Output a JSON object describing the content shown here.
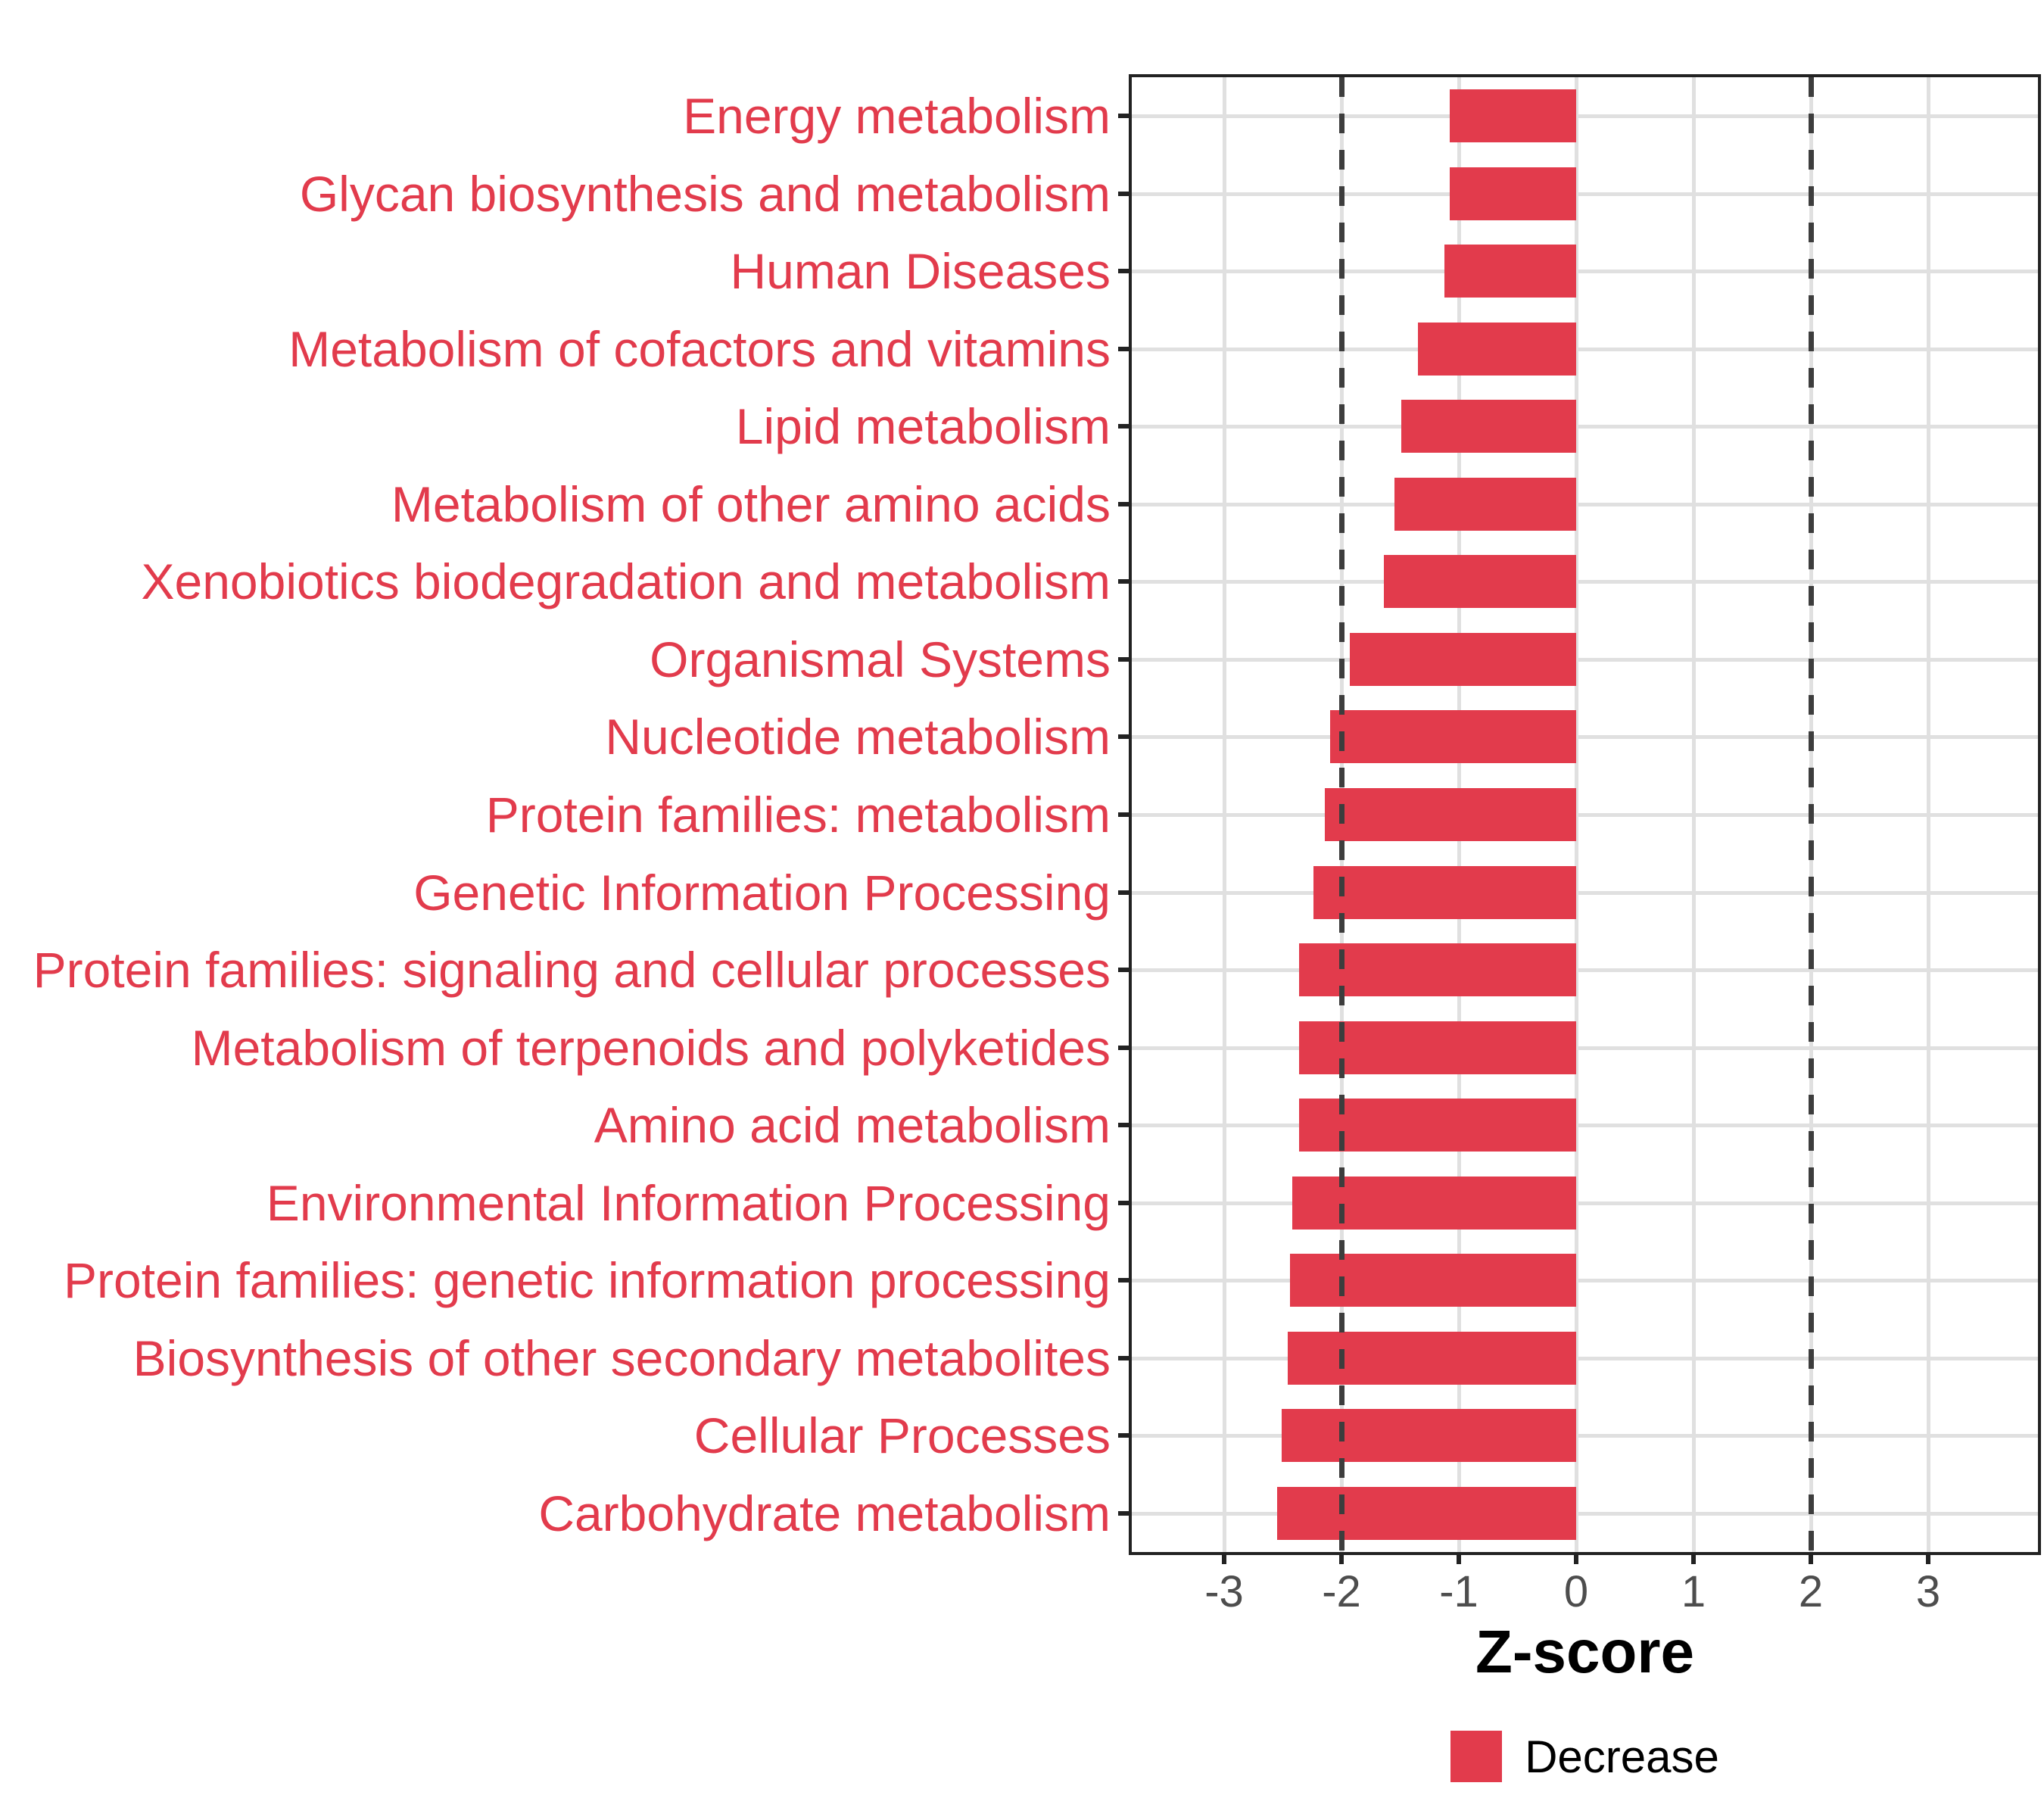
{
  "chart_data": {
    "type": "bar",
    "orientation": "horizontal",
    "title": "",
    "xlabel": "Z-score",
    "ylabel": "",
    "categories": [
      "Energy metabolism",
      "Glycan biosynthesis and metabolism",
      "Human Diseases",
      "Metabolism of cofactors and vitamins",
      "Lipid metabolism",
      "Metabolism of other amino acids",
      "Xenobiotics biodegradation and metabolism",
      "Organismal Systems",
      "Nucleotide metabolism",
      "Protein families: metabolism",
      "Genetic Information Processing",
      "Protein families: signaling and cellular processes",
      "Metabolism of terpenoids and polyketides",
      "Amino acid metabolism",
      "Environmental Information Processing",
      "Protein families: genetic information processing",
      "Biosynthesis of other secondary metabolites",
      "Cellular Processes",
      "Carbohydrate metabolism"
    ],
    "series": [
      {
        "name": "Decrease",
        "values": [
          -1.08,
          -1.08,
          -1.12,
          -1.35,
          -1.49,
          -1.55,
          -1.64,
          -1.93,
          -2.1,
          -2.14,
          -2.24,
          -2.36,
          -2.36,
          -2.36,
          -2.42,
          -2.44,
          -2.46,
          -2.51,
          -2.55
        ]
      }
    ],
    "x_ticks": [
      -3,
      -2,
      -1,
      0,
      1,
      2,
      3
    ],
    "xlim": [
      -3.85,
      3.9
    ],
    "reference_lines": [
      -2,
      2
    ],
    "grid": "major gridlines on, white background, full panel border",
    "legend_position": "bottom-center"
  },
  "legend": {
    "items": [
      {
        "label": "Decrease",
        "color": "#e23b4c"
      }
    ]
  },
  "colors": {
    "bar_fill": "#e23b4c",
    "category_label": "#e23b4c",
    "tick_label": "#4d4d4d",
    "axis_title": "#000000",
    "gridline": "#e0e0e0",
    "dashed_reference_line": "#3d3d3d",
    "panel_border": "#222222",
    "background": "#ffffff"
  }
}
